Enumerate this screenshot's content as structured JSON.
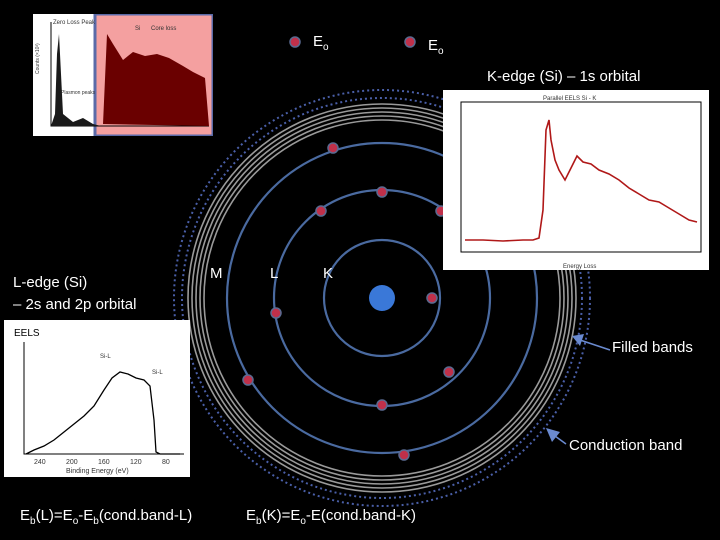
{
  "beam": {
    "e0_label_1": "E",
    "e0_label_2": "E",
    "sub": "o"
  },
  "k_edge": {
    "title": "K-edge (Si) – 1s orbital",
    "plot_title": "Parallel EELS Si - K",
    "x_label": "Energy Loss"
  },
  "l_edge": {
    "title_line1": "L-edge (Si)",
    "title_line2": "– 2s and 2p orbital",
    "plot_title": "EELS",
    "peak1": "Si-L",
    "peak2": "Si-L",
    "x_label": "Binding Energy (eV)",
    "ticks": [
      "240",
      "200",
      "160",
      "120",
      "80"
    ]
  },
  "zero_loss": {
    "title": "Zero Loss Peak",
    "title2": "Si",
    "title3": "Core loss",
    "plasmon": "Plasmon peaks",
    "ylabel": "Counts (×10³)"
  },
  "shells": {
    "m": "M",
    "l": "L",
    "k": "K"
  },
  "bands": {
    "filled": "Filled bands",
    "conduction": "Conduction band"
  },
  "equations": {
    "eq1": {
      "e": "E",
      "b": "b",
      "p1": "(L)=E",
      "o": "o",
      "p2": "-E",
      "b2": "b",
      "p3": "(cond.band-L)"
    },
    "eq2": {
      "e": "E",
      "b": "b",
      "p1": "(K)=E",
      "o": "o",
      "p2": "-E(cond.band-K)"
    }
  },
  "colors": {
    "orbit": "#4a6aa0",
    "electron": "#c0304a",
    "nucleus": "#3a78d8",
    "band": "#9a9a9a",
    "conduction_dots": "#4a5fa8",
    "arrow": "#6a8ad0"
  }
}
